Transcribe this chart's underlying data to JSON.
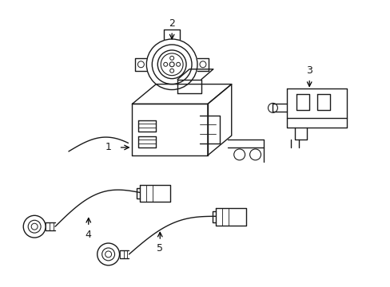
{
  "background_color": "#ffffff",
  "line_color": "#1a1a1a",
  "line_width": 1.0,
  "label_color": "#000000",
  "figsize": [
    4.89,
    3.6
  ],
  "dpi": 100
}
